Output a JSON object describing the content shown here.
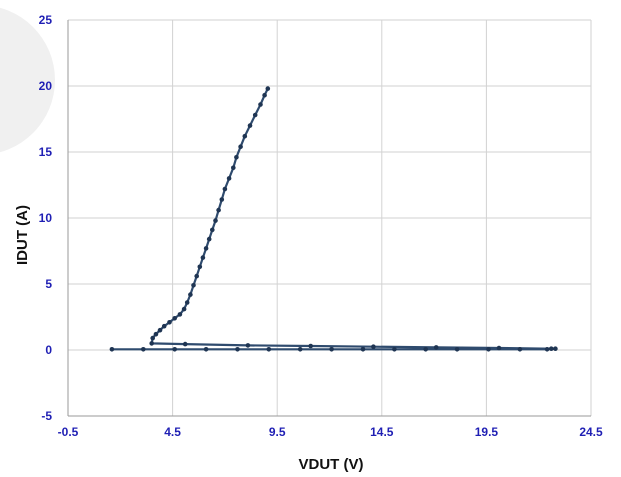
{
  "chart_data": {
    "type": "scatter",
    "xlabel": "VDUT (V)",
    "ylabel": "IDUT (A)",
    "xlim": [
      -0.5,
      24.5
    ],
    "ylim": [
      -5,
      25
    ],
    "x_ticks": [
      "-0.5",
      "4.5",
      "9.5",
      "14.5",
      "19.5",
      "24.5"
    ],
    "y_ticks": [
      "-5",
      "0",
      "5",
      "10",
      "15",
      "20",
      "25"
    ],
    "series": [
      {
        "style": "line-with-markers",
        "color": "#2f4b6e",
        "points": [
          [
            1.6,
            0.05
          ],
          [
            3.1,
            0.05
          ],
          [
            4.6,
            0.05
          ],
          [
            6.1,
            0.05
          ],
          [
            7.6,
            0.05
          ],
          [
            9.1,
            0.05
          ],
          [
            10.6,
            0.05
          ],
          [
            12.1,
            0.05
          ],
          [
            13.6,
            0.05
          ],
          [
            15.1,
            0.05
          ],
          [
            16.6,
            0.05
          ],
          [
            18.1,
            0.05
          ],
          [
            19.6,
            0.05
          ],
          [
            21.1,
            0.05
          ],
          [
            22.4,
            0.05
          ],
          [
            22.8,
            0.1
          ],
          [
            22.6,
            0.1
          ],
          [
            20.1,
            0.15
          ],
          [
            17.1,
            0.2
          ],
          [
            14.1,
            0.25
          ],
          [
            11.1,
            0.3
          ],
          [
            8.1,
            0.35
          ],
          [
            5.1,
            0.45
          ],
          [
            3.5,
            0.5
          ],
          [
            3.55,
            0.9
          ],
          [
            3.7,
            1.2
          ],
          [
            3.9,
            1.5
          ],
          [
            4.1,
            1.8
          ],
          [
            4.35,
            2.1
          ],
          [
            4.6,
            2.4
          ],
          [
            4.85,
            2.7
          ],
          [
            5.05,
            3.1
          ],
          [
            5.2,
            3.6
          ],
          [
            5.35,
            4.2
          ],
          [
            5.5,
            4.9
          ],
          [
            5.65,
            5.6
          ],
          [
            5.8,
            6.3
          ],
          [
            5.95,
            7.0
          ],
          [
            6.1,
            7.7
          ],
          [
            6.25,
            8.4
          ],
          [
            6.4,
            9.1
          ],
          [
            6.55,
            9.8
          ],
          [
            6.7,
            10.6
          ],
          [
            6.85,
            11.4
          ],
          [
            7.0,
            12.2
          ],
          [
            7.2,
            13.0
          ],
          [
            7.4,
            13.8
          ],
          [
            7.55,
            14.6
          ],
          [
            7.75,
            15.4
          ],
          [
            7.95,
            16.2
          ],
          [
            8.2,
            17.0
          ],
          [
            8.45,
            17.8
          ],
          [
            8.7,
            18.6
          ],
          [
            8.9,
            19.3
          ],
          [
            9.05,
            19.8
          ]
        ]
      }
    ]
  }
}
